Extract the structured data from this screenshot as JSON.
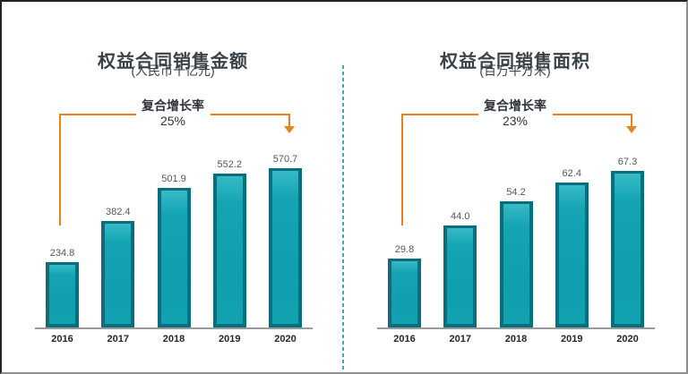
{
  "colors": {
    "bar_fill": "#12a2b1",
    "bar_edge": "#0b6e7c",
    "arrow_orange": "#e8821c",
    "divider_teal": "#3fa9b3",
    "title_text": "#3a4147",
    "value_label_text": "#565656",
    "year_label_text": "#262626",
    "axis_gray": "#9b9b9b"
  },
  "chart_data": [
    {
      "type": "bar",
      "title": "权益合同销售金额",
      "subtitle": "(人民币十亿元)",
      "annotation_label": "复合增长率",
      "annotation_value": "25%",
      "categories": [
        "2016",
        "2017",
        "2018",
        "2019",
        "2020"
      ],
      "values": [
        234.8,
        382.4,
        501.9,
        552.2,
        570.7
      ],
      "value_labels": [
        "234.8",
        "382.4",
        "501.9",
        "552.2",
        "570.7"
      ],
      "xlabel": "",
      "ylabel": "",
      "ylim": [
        0,
        600
      ],
      "grid": false,
      "legend": false,
      "bar_color": "#12a2b1",
      "annotation_arrow_color": "#e8821c",
      "label_position": "above-bars"
    },
    {
      "type": "bar",
      "title": "权益合同销售面积",
      "subtitle": "(百万平方米)",
      "annotation_label": "复合增长率",
      "annotation_value": "23%",
      "categories": [
        "2016",
        "2017",
        "2018",
        "2019",
        "2020"
      ],
      "values": [
        29.8,
        44.0,
        54.2,
        62.4,
        67.3
      ],
      "value_labels": [
        "29.8",
        "44.0",
        "54.2",
        "62.4",
        "67.3"
      ],
      "xlabel": "",
      "ylabel": "",
      "ylim": [
        0,
        72
      ],
      "grid": false,
      "legend": false,
      "bar_color": "#12a2b1",
      "annotation_arrow_color": "#e8821c",
      "label_position": "above-bars"
    }
  ]
}
